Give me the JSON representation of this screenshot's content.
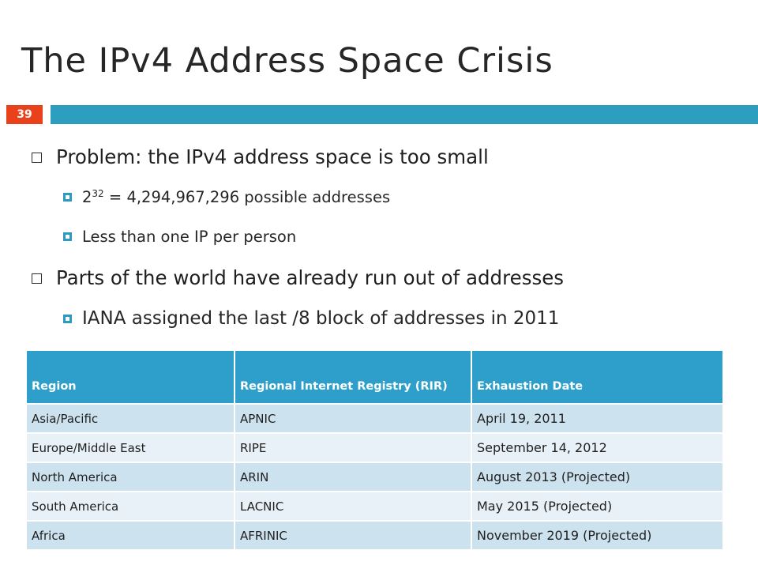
{
  "slide": {
    "title": "The IPv4 Address Space Crisis",
    "number": "39",
    "colors": {
      "number_box": "#e8411c",
      "accent_band": "#2e9ec0",
      "table_header": "#2d9fca",
      "row_dark": "#cde2ef",
      "row_light": "#e8f1f8"
    }
  },
  "bullets": [
    {
      "level": 1,
      "icon": "hollow-square-icon",
      "text": "Problem: the IPv4 address space is too small"
    },
    {
      "level": 2,
      "icon": "filled-square-icon",
      "base": "2",
      "exponent": "32",
      "text": " = 4,294,967,296 possible addresses"
    },
    {
      "level": 2,
      "icon": "filled-square-icon",
      "text": "Less than one IP per person"
    },
    {
      "level": 1,
      "icon": "hollow-square-icon",
      "text": "Parts of the world have already run out of addresses"
    },
    {
      "level": 2,
      "icon": "filled-square-icon",
      "text": "IANA assigned the last /8 block of addresses in 2011"
    }
  ],
  "table": {
    "headers": [
      "Region",
      "Regional  Internet Registry (RIR)",
      "Exhaustion Date"
    ],
    "rows": [
      [
        "Asia/Pacific",
        "APNIC",
        "April 19, 2011"
      ],
      [
        "Europe/Middle East",
        "RIPE",
        "September 14, 2012"
      ],
      [
        "North America",
        "ARIN",
        "August 2013 (Projected)"
      ],
      [
        "South America",
        "LACNIC",
        "May 2015 (Projected)"
      ],
      [
        "Africa",
        "AFRINIC",
        "November 2019 (Projected)"
      ]
    ]
  }
}
